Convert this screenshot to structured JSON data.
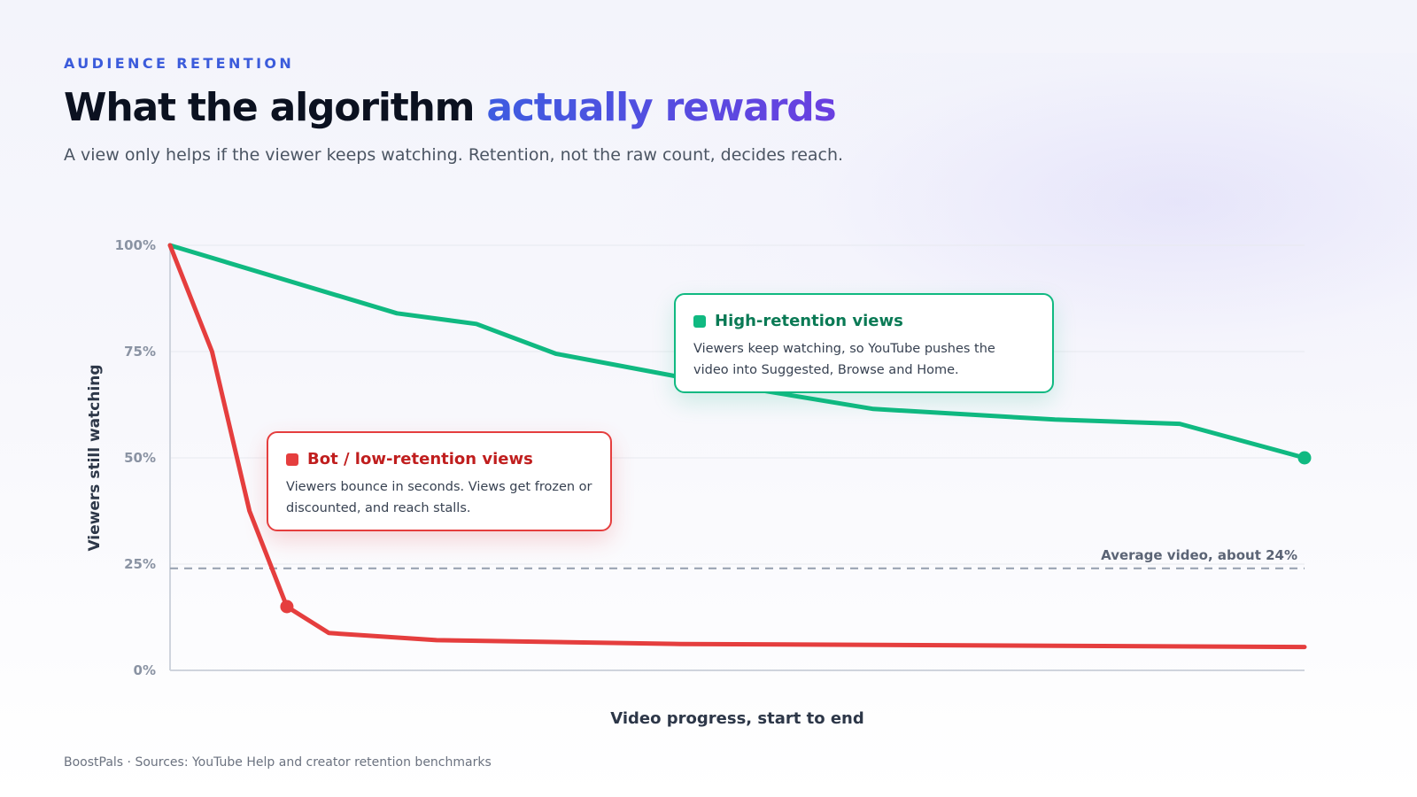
{
  "eyebrow": "AUDIENCE RETENTION",
  "title": {
    "main": "What the algorithm ",
    "accent": "actually rewards"
  },
  "subtitle": "A view only helps if the viewer keeps watching. Retention, not the raw count, decides reach.",
  "colors": {
    "high": "#10b981",
    "low": "#e53e3e",
    "high_title": "#0a7a55",
    "low_title": "#c01e1e",
    "average": "#9aa3b2",
    "grid": "#e7e9ef",
    "axis": "#cfd4dd",
    "tick": "#8a93a3"
  },
  "chart_data": {
    "type": "line",
    "xlabel": "Video progress, start to end",
    "ylabel": "Viewers still watching",
    "ylim": [
      0,
      100
    ],
    "yticks": [
      {
        "value": 0,
        "label": "0%"
      },
      {
        "value": 25,
        "label": "25%"
      },
      {
        "value": 50,
        "label": "50%"
      },
      {
        "value": 75,
        "label": "75%"
      },
      {
        "value": 100,
        "label": "100%"
      }
    ],
    "xlim": [
      0,
      100
    ],
    "grid": true,
    "series": [
      {
        "key": "high",
        "points": [
          [
            0,
            100
          ],
          [
            20,
            84
          ],
          [
            27,
            81.5
          ],
          [
            34,
            74.5
          ],
          [
            45,
            69
          ],
          [
            62,
            61.5
          ],
          [
            78,
            59
          ],
          [
            89,
            58
          ],
          [
            100,
            50
          ]
        ],
        "end_marker": true
      },
      {
        "key": "low",
        "points": [
          [
            0,
            100
          ],
          [
            3.7,
            75
          ],
          [
            7,
            37.5
          ],
          [
            10.3,
            15
          ],
          [
            14,
            8.8
          ],
          [
            23.5,
            7.1
          ],
          [
            45,
            6.2
          ],
          [
            100,
            5.5
          ]
        ],
        "marker_at_index": 3
      }
    ],
    "reference_line": {
      "value": 24,
      "label": "Average video, about 24%"
    }
  },
  "callouts": {
    "high": {
      "title": "High-retention views",
      "body": "Viewers keep watching, so YouTube pushes the video into Suggested, Browse and Home."
    },
    "low": {
      "title": "Bot / low-retention views",
      "body": "Viewers bounce in seconds. Views get frozen or discounted, and reach stalls."
    }
  },
  "footer": "BoostPals · Sources: YouTube Help and creator retention benchmarks"
}
